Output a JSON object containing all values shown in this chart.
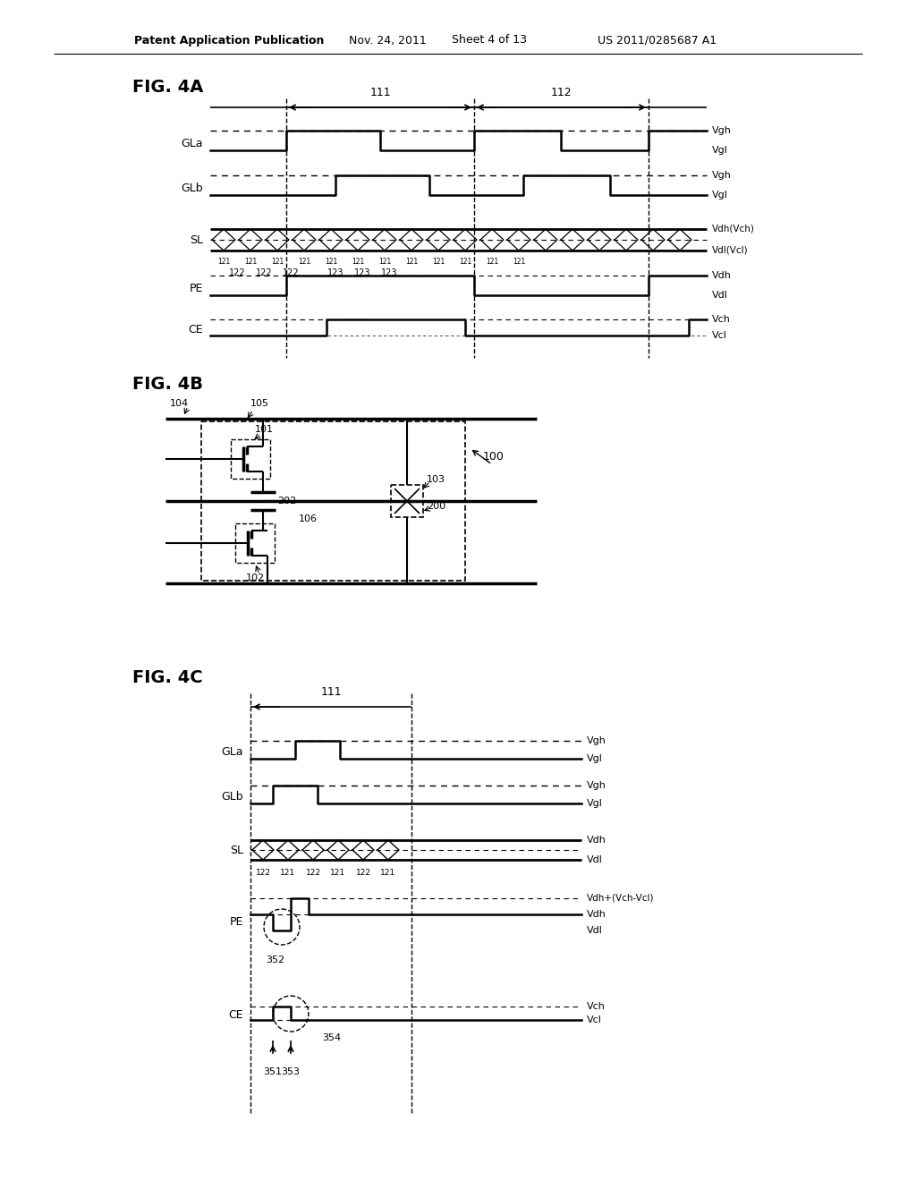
{
  "bg_color": "#ffffff",
  "header_text": "Patent Application Publication",
  "header_date": "Nov. 24, 2011",
  "header_sheet": "Sheet 4 of 13",
  "header_patent": "US 2011/0285687 A1",
  "fig4a_title": "FIG. 4A",
  "fig4b_title": "FIG. 4B",
  "fig4c_title": "FIG. 4C"
}
